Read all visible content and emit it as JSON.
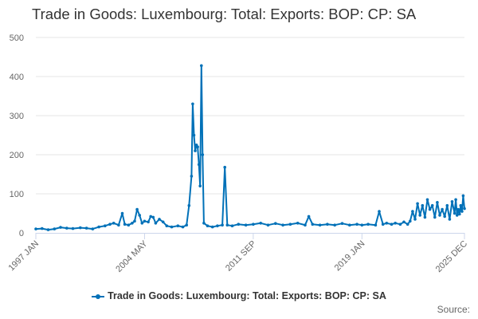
{
  "chart_data": {
    "type": "line",
    "title": "Trade in Goods: Luxembourg: Total: Exports: BOP: CP: SA",
    "xlabel": "",
    "ylabel": "",
    "x_tick_labels": [
      "1997 JAN",
      "2004 MAY",
      "2011 SEP",
      "2019 JAN",
      "2025 DEC"
    ],
    "y_ticks": [
      0,
      100,
      200,
      300,
      400,
      500
    ],
    "ylim": [
      0,
      500
    ],
    "xlim": [
      "1997-01",
      "2025-12"
    ],
    "grid": "horizontal",
    "legend_position": "bottom",
    "series": [
      {
        "name": "Trade in Goods: Luxembourg: Total: Exports: BOP: CP: SA",
        "color": "#0071b8",
        "points": [
          [
            "1997-01",
            10
          ],
          [
            "1997-06",
            11
          ],
          [
            "1997-11",
            8
          ],
          [
            "1998-04",
            10
          ],
          [
            "1998-09",
            14
          ],
          [
            "1999-02",
            12
          ],
          [
            "1999-07",
            11
          ],
          [
            "2000-01",
            13
          ],
          [
            "2000-06",
            12
          ],
          [
            "2000-11",
            10
          ],
          [
            "2001-04",
            15
          ],
          [
            "2001-09",
            18
          ],
          [
            "2002-01",
            22
          ],
          [
            "2002-04",
            25
          ],
          [
            "2002-08",
            20
          ],
          [
            "2002-11",
            50
          ],
          [
            "2003-01",
            22
          ],
          [
            "2003-04",
            20
          ],
          [
            "2003-07",
            25
          ],
          [
            "2003-09",
            30
          ],
          [
            "2003-11",
            60
          ],
          [
            "2004-01",
            45
          ],
          [
            "2004-03",
            25
          ],
          [
            "2004-05",
            30
          ],
          [
            "2004-08",
            28
          ],
          [
            "2004-10",
            42
          ],
          [
            "2004-12",
            40
          ],
          [
            "2005-02",
            25
          ],
          [
            "2005-05",
            35
          ],
          [
            "2005-08",
            28
          ],
          [
            "2005-11",
            18
          ],
          [
            "2006-03",
            15
          ],
          [
            "2006-08",
            18
          ],
          [
            "2006-12",
            15
          ],
          [
            "2007-03",
            20
          ],
          [
            "2007-05",
            70
          ],
          [
            "2007-07",
            145
          ],
          [
            "2007-08",
            330
          ],
          [
            "2007-09",
            250
          ],
          [
            "2007-10",
            210
          ],
          [
            "2007-11",
            225
          ],
          [
            "2007-12",
            220
          ],
          [
            "2008-01",
            175
          ],
          [
            "2008-02",
            120
          ],
          [
            "2008-03",
            428
          ],
          [
            "2008-04",
            200
          ],
          [
            "2008-05",
            25
          ],
          [
            "2008-08",
            18
          ],
          [
            "2008-12",
            15
          ],
          [
            "2009-04",
            18
          ],
          [
            "2009-08",
            20
          ],
          [
            "2009-10",
            168
          ],
          [
            "2009-12",
            20
          ],
          [
            "2010-04",
            18
          ],
          [
            "2010-09",
            22
          ],
          [
            "2011-03",
            20
          ],
          [
            "2011-09",
            22
          ],
          [
            "2012-03",
            25
          ],
          [
            "2012-09",
            20
          ],
          [
            "2013-03",
            24
          ],
          [
            "2013-09",
            20
          ],
          [
            "2014-03",
            22
          ],
          [
            "2014-09",
            25
          ],
          [
            "2015-03",
            20
          ],
          [
            "2015-06",
            42
          ],
          [
            "2015-09",
            22
          ],
          [
            "2016-03",
            20
          ],
          [
            "2016-09",
            22
          ],
          [
            "2017-03",
            20
          ],
          [
            "2017-09",
            24
          ],
          [
            "2018-03",
            20
          ],
          [
            "2018-09",
            22
          ],
          [
            "2019-01",
            20
          ],
          [
            "2019-06",
            22
          ],
          [
            "2019-12",
            20
          ],
          [
            "2020-03",
            55
          ],
          [
            "2020-06",
            22
          ],
          [
            "2020-09",
            25
          ],
          [
            "2021-01",
            22
          ],
          [
            "2021-04",
            25
          ],
          [
            "2021-08",
            22
          ],
          [
            "2021-11",
            28
          ],
          [
            "2022-02",
            22
          ],
          [
            "2022-04",
            30
          ],
          [
            "2022-06",
            55
          ],
          [
            "2022-08",
            35
          ],
          [
            "2022-10",
            75
          ],
          [
            "2022-12",
            45
          ],
          [
            "2023-02",
            70
          ],
          [
            "2023-04",
            40
          ],
          [
            "2023-06",
            85
          ],
          [
            "2023-08",
            60
          ],
          [
            "2023-10",
            70
          ],
          [
            "2023-12",
            40
          ],
          [
            "2024-02",
            78
          ],
          [
            "2024-04",
            45
          ],
          [
            "2024-06",
            60
          ],
          [
            "2024-08",
            42
          ],
          [
            "2024-10",
            70
          ],
          [
            "2024-12",
            35
          ],
          [
            "2025-02",
            80
          ],
          [
            "2025-04",
            50
          ],
          [
            "2025-05",
            85
          ],
          [
            "2025-06",
            45
          ],
          [
            "2025-07",
            60
          ],
          [
            "2025-08",
            48
          ],
          [
            "2025-09",
            70
          ],
          [
            "2025-10",
            55
          ],
          [
            "2025-11",
            95
          ],
          [
            "2025-12",
            62
          ]
        ]
      }
    ]
  },
  "legend": {
    "label": "Trade in Goods: Luxembourg: Total: Exports: BOP: CP: SA"
  },
  "credits": "Source:"
}
